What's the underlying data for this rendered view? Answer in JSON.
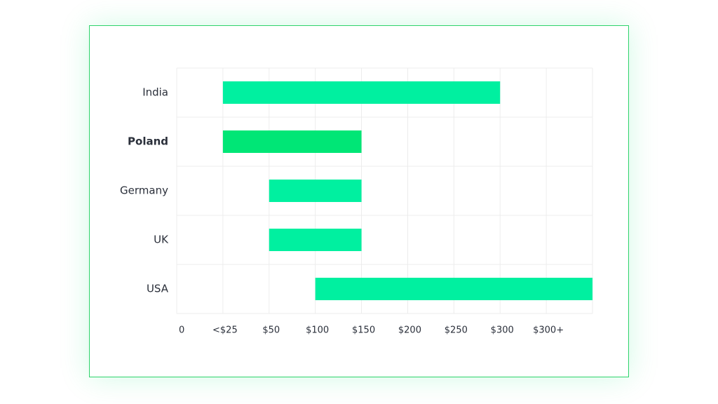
{
  "chart_data": {
    "type": "range-bar",
    "categories": [
      "India",
      "Poland",
      "Germany",
      "UK",
      "USA"
    ],
    "starts": [
      25,
      25,
      50,
      50,
      100
    ],
    "ends": [
      300,
      150,
      150,
      150,
      400
    ],
    "color": "#00f0a0",
    "highlight": "Poland",
    "highlight_color": "#00e676",
    "xlim": [
      0,
      400
    ],
    "xticks": [
      0,
      {
        "value": 25,
        "label": "<$25"
      },
      {
        "value": 50,
        "label": "$50"
      },
      {
        "value": 100,
        "label": "$100"
      },
      {
        "value": 150,
        "label": "$150"
      },
      {
        "value": 200,
        "label": "$200"
      },
      {
        "value": 250,
        "label": "$250"
      },
      {
        "value": 300,
        "label": "$300"
      },
      {
        "value": 350,
        "label": "$300+"
      }
    ],
    "grid": true
  }
}
